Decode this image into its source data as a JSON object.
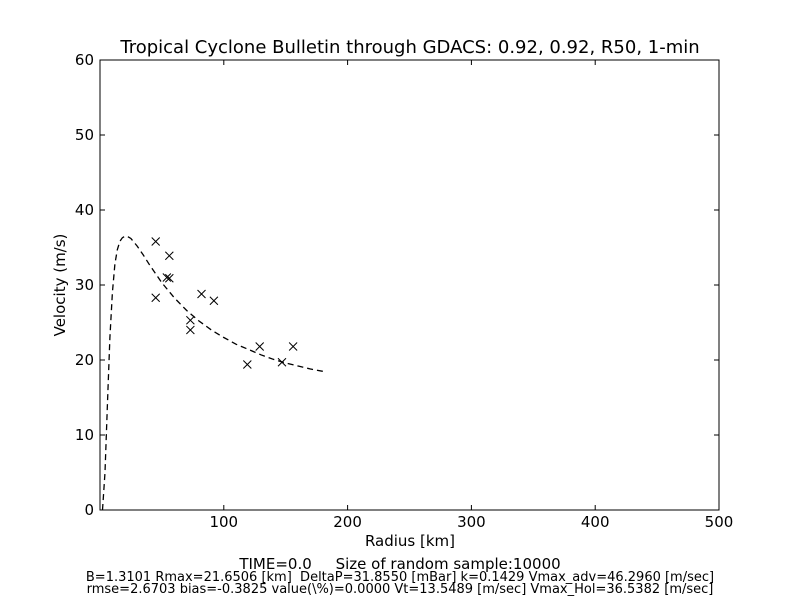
{
  "chart_data": {
    "type": "scatter",
    "title": "Tropical Cyclone Bulletin through GDACS: 0.92, 0.92, R50, 1-min",
    "xlabel": "Radius [km]",
    "ylabel": "Velocity (m/s)",
    "xlim": [
      0,
      500
    ],
    "ylim": [
      0,
      60
    ],
    "xticks": [
      100,
      200,
      300,
      400,
      500
    ],
    "yticks": [
      0,
      10,
      20,
      30,
      40,
      50,
      60
    ],
    "grid": false,
    "series": [
      {
        "style": "x-markers",
        "x": [
          45,
          45,
          54,
          56,
          56,
          73,
          73,
          82,
          92,
          119,
          129,
          147,
          156
        ],
        "y": [
          35.8,
          28.3,
          31.0,
          33.9,
          30.9,
          25.3,
          24.0,
          28.8,
          27.9,
          19.4,
          21.8,
          19.7,
          21.8
        ]
      },
      {
        "style": "dashed-line",
        "x": [
          2,
          4,
          6,
          8,
          10,
          12,
          14,
          16,
          18,
          20,
          22,
          25,
          30,
          35,
          40,
          50,
          60,
          70,
          80,
          90,
          100,
          110,
          120,
          130,
          140,
          150,
          160,
          170,
          180
        ],
        "y": [
          0,
          5,
          14,
          23,
          29,
          32.8,
          34.7,
          35.8,
          36.3,
          36.5,
          36.5,
          36.2,
          35.2,
          34.0,
          32.7,
          30.3,
          28.3,
          26.6,
          25.2,
          24.0,
          23.0,
          22.1,
          21.4,
          20.7,
          20.1,
          19.6,
          19.2,
          18.8,
          18.5
        ]
      }
    ]
  },
  "footer": {
    "line1": "TIME=0.0     Size of random sample:10000",
    "line2": "B=1.3101 Rmax=21.6506 [km]  DeltaP=31.8550 [mBar] k=0.1429 Vmax_adv=46.2960 [m/sec]",
    "line3": "rmse=2.6703 bias=-0.3825 value(\\%)=0.0000 Vt=13.5489 [m/sec] Vmax_Hol=36.5382 [m/sec]"
  }
}
